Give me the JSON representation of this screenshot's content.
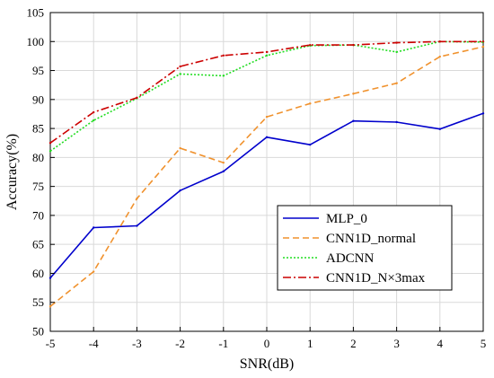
{
  "chart_data": {
    "type": "line",
    "xlabel": "SNR(dB)",
    "ylabel": "Accuracy(%)",
    "x": [
      -5,
      -4,
      -3,
      -2,
      -1,
      0,
      1,
      2,
      3,
      4,
      5
    ],
    "xlim": [
      -5,
      5
    ],
    "ylim": [
      50,
      105
    ],
    "xticks": [
      -5,
      -4,
      -3,
      -2,
      -1,
      0,
      1,
      2,
      3,
      4,
      5
    ],
    "yticks": [
      50,
      55,
      60,
      65,
      70,
      75,
      80,
      85,
      90,
      95,
      100,
      105
    ],
    "grid": true,
    "legend_position": "bottom-right",
    "series": [
      {
        "name": "MLP_0",
        "color": "#0000cc",
        "dash": "solid",
        "values": [
          59.2,
          67.9,
          68.2,
          74.3,
          77.6,
          83.5,
          82.2,
          86.3,
          86.1,
          84.9,
          87.6
        ]
      },
      {
        "name": "CNN1D_normal",
        "color": "#f0922e",
        "dash": "dashed",
        "values": [
          54.3,
          60.3,
          72.9,
          81.6,
          79.1,
          87.0,
          89.3,
          91.0,
          92.8,
          97.4,
          99.1
        ]
      },
      {
        "name": "ADCNN",
        "color": "#22dd22",
        "dash": "dotted",
        "values": [
          81.1,
          86.4,
          90.2,
          94.4,
          94.1,
          97.6,
          99.3,
          99.4,
          98.2,
          100.0,
          99.9
        ]
      },
      {
        "name": "CNN1D_N×3max",
        "color": "#cc0000",
        "dash": "dashdot",
        "values": [
          82.5,
          87.8,
          90.3,
          95.7,
          97.6,
          98.2,
          99.4,
          99.4,
          99.8,
          100.0,
          100.0
        ]
      }
    ]
  }
}
